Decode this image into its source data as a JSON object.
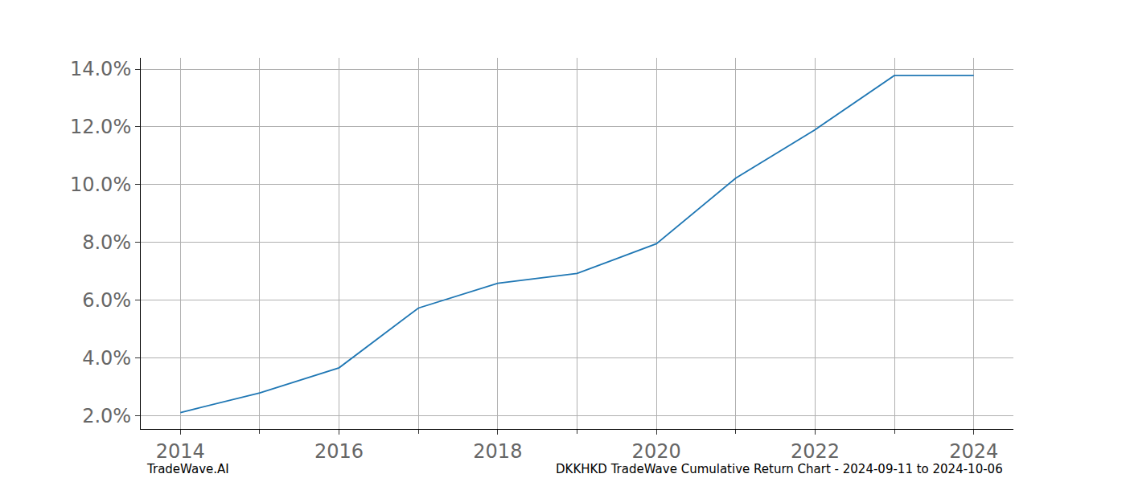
{
  "chart_data": {
    "type": "line",
    "x": [
      2014,
      2015,
      2016,
      2017,
      2018,
      2019,
      2020,
      2021,
      2022,
      2023,
      2024
    ],
    "values": [
      2.1,
      2.78,
      3.65,
      5.72,
      6.58,
      6.92,
      7.95,
      10.22,
      11.9,
      13.78,
      13.78
    ],
    "color": "#1f77b4",
    "xlim": [
      2013.5,
      2024.5
    ],
    "xticks": [
      2014,
      2016,
      2018,
      2020,
      2022,
      2024
    ],
    "ylim": [
      1.53,
      14.39
    ],
    "yticks": [
      {
        "value": 2,
        "label": "2.0%"
      },
      {
        "value": 4,
        "label": "4.0%"
      },
      {
        "value": 6,
        "label": "6.0%"
      },
      {
        "value": 8,
        "label": "8.0%"
      },
      {
        "value": 10,
        "label": "10.0%"
      },
      {
        "value": 12,
        "label": "12.0%"
      },
      {
        "value": 14,
        "label": "14.0%"
      }
    ],
    "grid": true,
    "annotations": [
      {
        "text": "TradeWave.AI"
      },
      {
        "text": "DKKHKD TradeWave Cumulative Return Chart - 2024-09-11 to 2024-10-06"
      }
    ]
  }
}
